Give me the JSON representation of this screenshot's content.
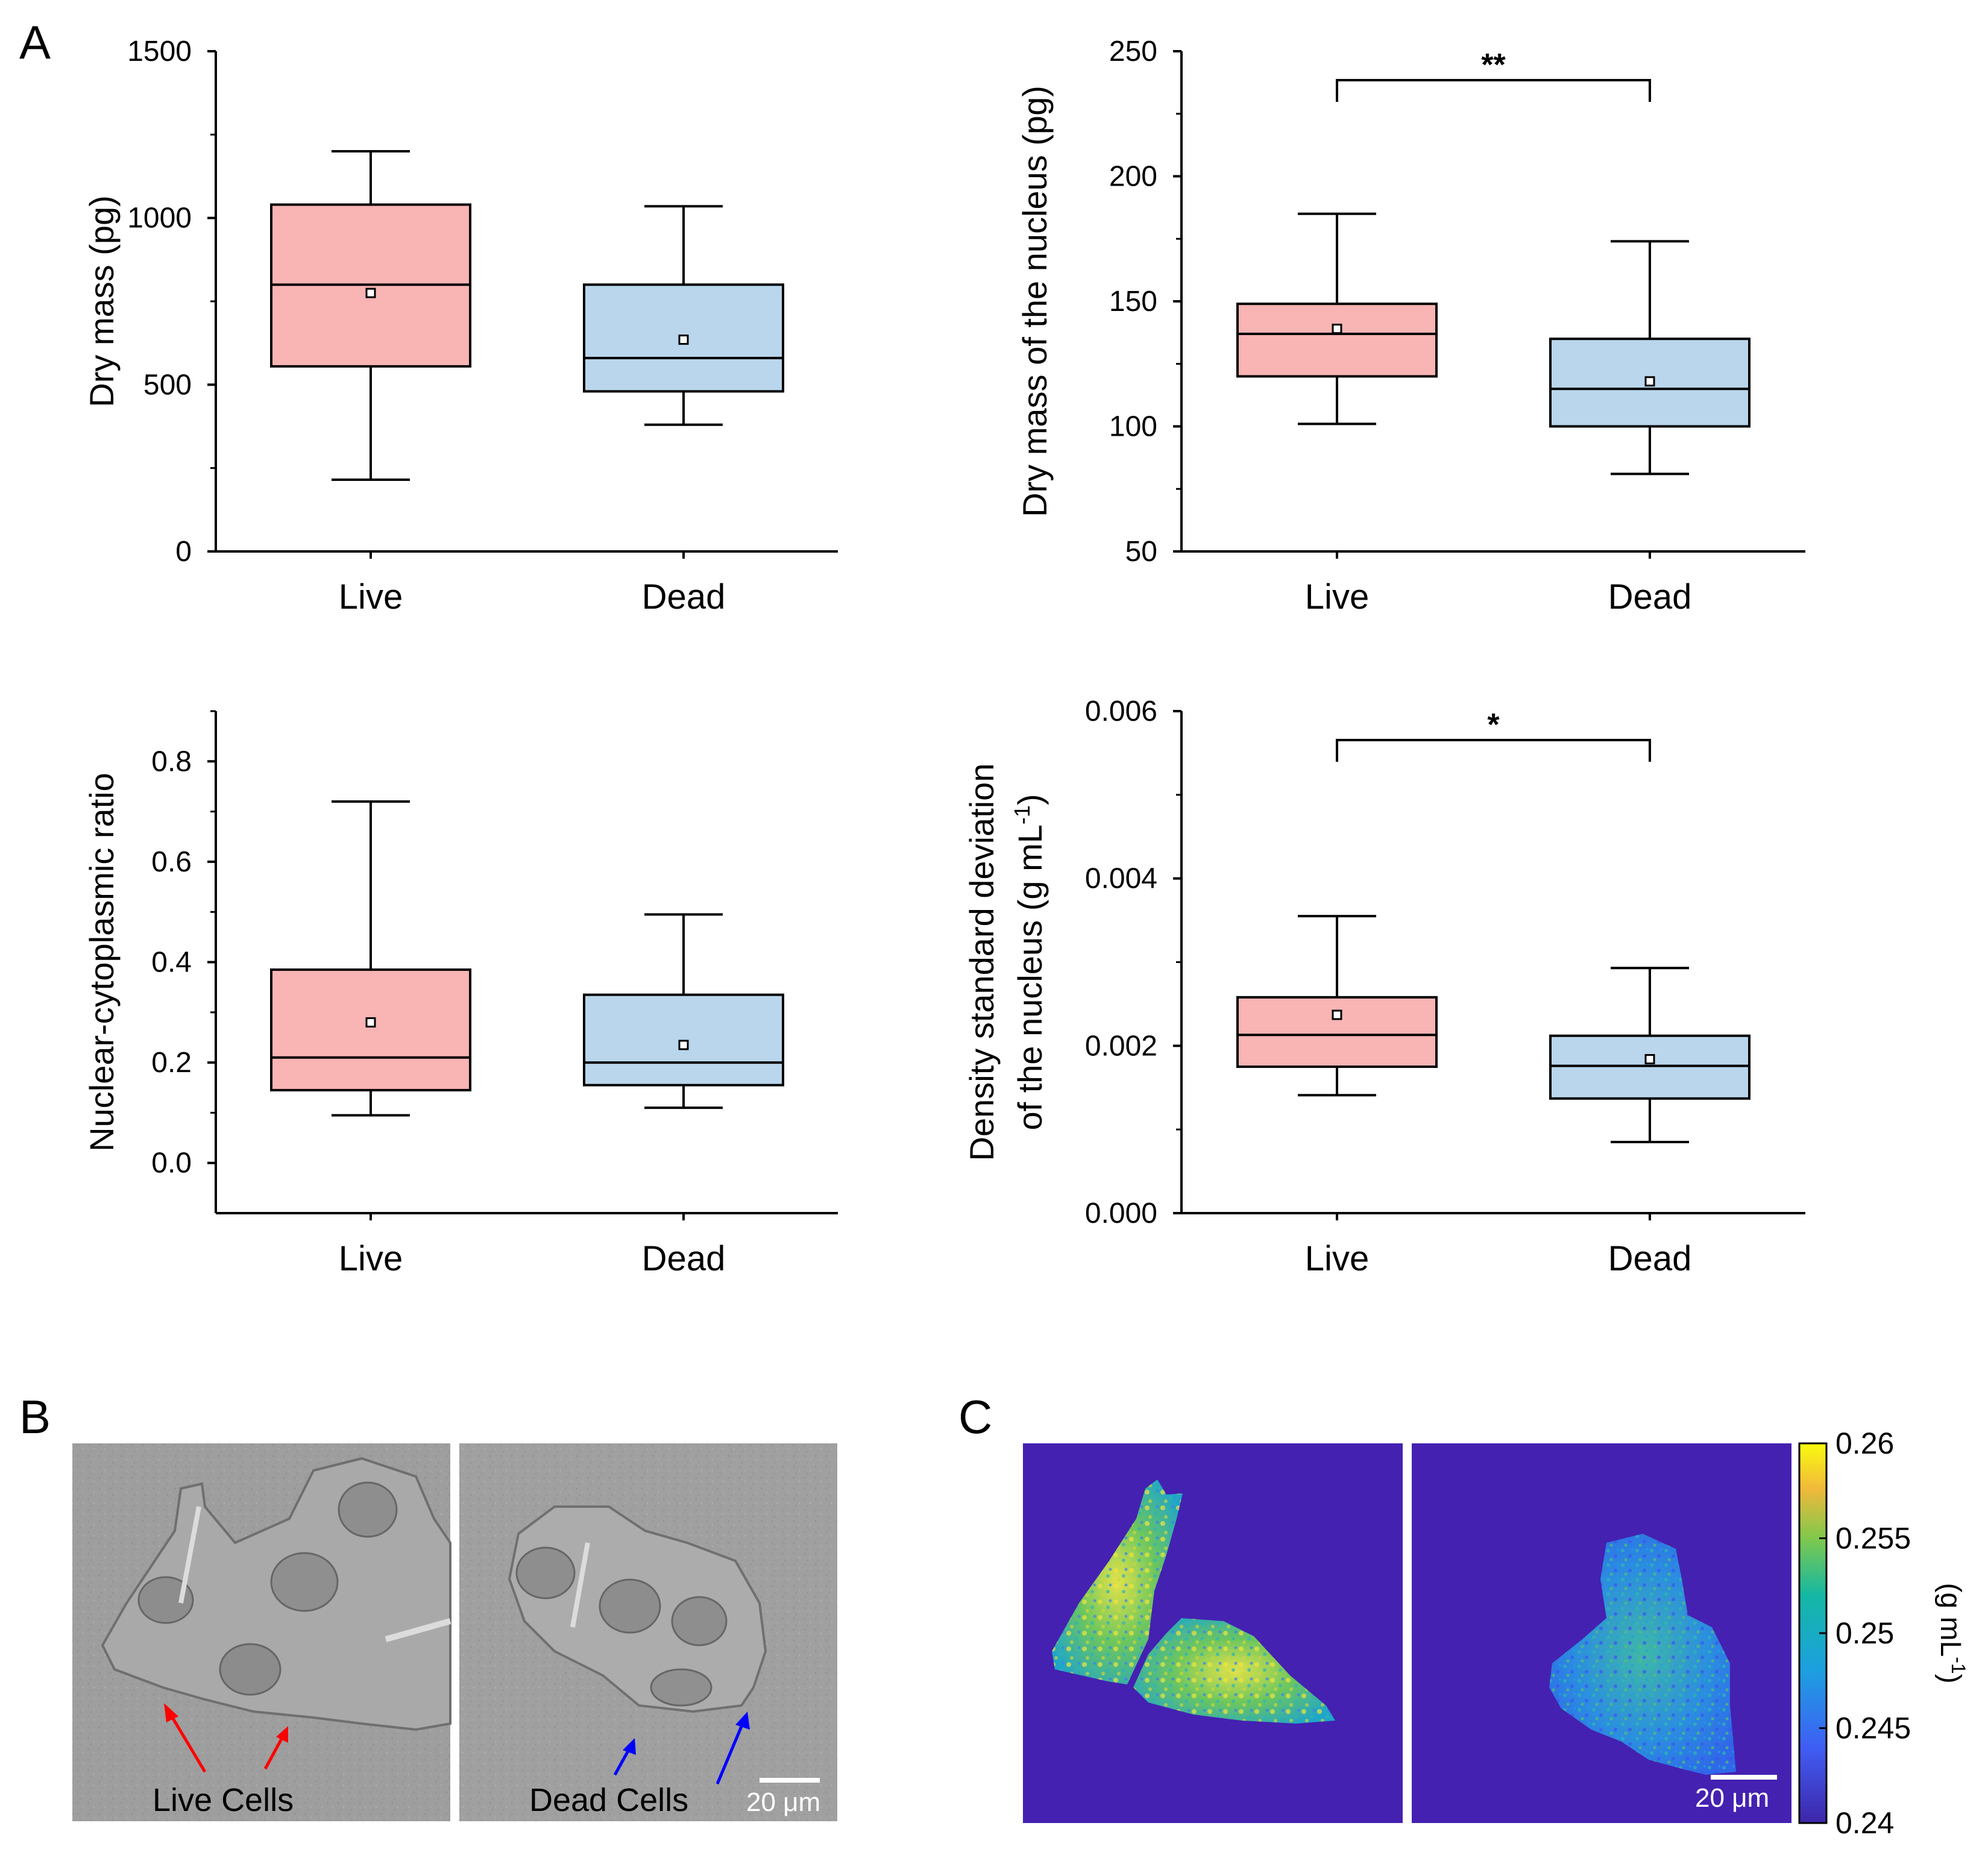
{
  "labels": {
    "panel_a": "A",
    "panel_b": "B",
    "panel_c": "C",
    "live_cells": "Live Cells",
    "dead_cells": "Dead Cells",
    "scale_bar_b": "20 μm",
    "scale_bar_c": "20 μm",
    "colorbar_unit": "(g mL",
    "colorbar_unit_sup": "-1",
    "colorbar_unit_close": ")",
    "colorbar_ticks": [
      "0.26",
      "0.255",
      "0.25",
      "0.245",
      "0.24"
    ]
  },
  "colors": {
    "live": "#f9b4b4",
    "dead": "#b9d6ec",
    "arrow_live": "#ff0000",
    "arrow_dead": "#0000ff",
    "map_background": "#4421b1"
  },
  "chart_data": [
    {
      "type": "box",
      "ylabel": "Dry mass (pg)",
      "ylim": [
        0,
        1500
      ],
      "yticks": [
        "0",
        "500",
        "1000",
        "1500"
      ],
      "categories": [
        "Live",
        "Dead"
      ],
      "boxes": [
        {
          "category": "Live",
          "whisker_low": 215,
          "q1": 555,
          "median": 800,
          "q3": 1040,
          "whisker_high": 1200,
          "mean": 775
        },
        {
          "category": "Dead",
          "whisker_low": 380,
          "q1": 480,
          "median": 580,
          "q3": 800,
          "whisker_high": 1035,
          "mean": 635
        }
      ],
      "significance": null
    },
    {
      "type": "box",
      "ylabel": "Dry mass of the nucleus (pg)",
      "ylim": [
        50,
        250
      ],
      "yticks": [
        "50",
        "100",
        "150",
        "200",
        "250"
      ],
      "categories": [
        "Live",
        "Dead"
      ],
      "boxes": [
        {
          "category": "Live",
          "whisker_low": 101,
          "q1": 120,
          "median": 137,
          "q3": 149,
          "whisker_high": 185,
          "mean": 139
        },
        {
          "category": "Dead",
          "whisker_low": 81,
          "q1": 100,
          "median": 115,
          "q3": 135,
          "whisker_high": 174,
          "mean": 118
        }
      ],
      "significance": "**"
    },
    {
      "type": "box",
      "ylabel": "Nuclear-cytoplasmic ratio",
      "ylim": [
        -0.1,
        0.9
      ],
      "yticks": [
        "0.0",
        "0.2",
        "0.4",
        "0.6",
        "0.8"
      ],
      "categories": [
        "Live",
        "Dead"
      ],
      "boxes": [
        {
          "category": "Live",
          "whisker_low": 0.095,
          "q1": 0.145,
          "median": 0.21,
          "q3": 0.385,
          "whisker_high": 0.72,
          "mean": 0.28
        },
        {
          "category": "Dead",
          "whisker_low": 0.11,
          "q1": 0.155,
          "median": 0.2,
          "q3": 0.335,
          "whisker_high": 0.495,
          "mean": 0.235
        }
      ],
      "significance": null
    },
    {
      "type": "box",
      "ylabel": "Density standard deviation",
      "ylabel2": "of the nucleus (g mL",
      "ylabel2_sup": "-1",
      "ylabel2_close": ")",
      "ylim": [
        0,
        0.006
      ],
      "yticks": [
        "0.000",
        "0.002",
        "0.004",
        "0.006"
      ],
      "categories": [
        "Live",
        "Dead"
      ],
      "boxes": [
        {
          "category": "Live",
          "whisker_low": 0.00141,
          "q1": 0.00175,
          "median": 0.00213,
          "q3": 0.00258,
          "whisker_high": 0.00355,
          "mean": 0.00237
        },
        {
          "category": "Dead",
          "whisker_low": 0.00085,
          "q1": 0.00137,
          "median": 0.00176,
          "q3": 0.00212,
          "whisker_high": 0.00293,
          "mean": 0.00184
        }
      ],
      "significance": "*"
    }
  ]
}
